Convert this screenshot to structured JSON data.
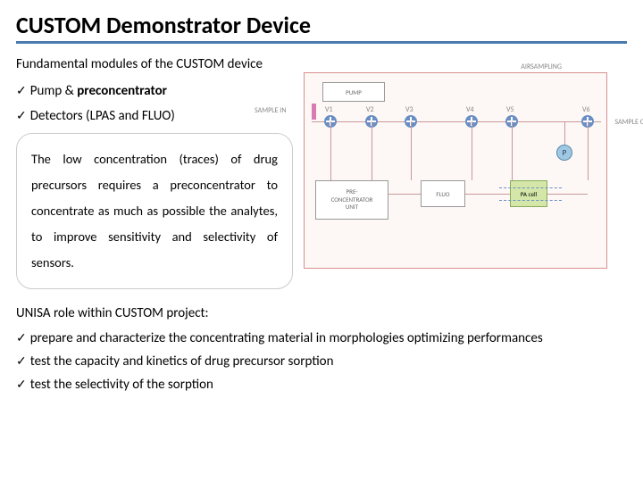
{
  "title": "CUSTOM Demonstrator Device",
  "subtitle": "Fundamental modules of the CUSTOM device",
  "modules": [
    {
      "label_html": "Pump & <b>preconcentrator</b>"
    },
    {
      "label_html": "Detectors (LPAS and FLUO)"
    }
  ],
  "description": "The low concentration (traces) of drug precursors requires a preconcentrator to concentrate as much as possible the analytes, to improve sensitivity and selectivity of sensors.",
  "role_title": "UNISA role within CUSTOM project:",
  "roles": [
    "prepare and characterize the concentrating material in morphologies optimizing performances",
    "test the capacity and kinetics of drug precursor sorption",
    "test the selectivity of the sorption"
  ],
  "diagram": {
    "border_color": "#d89090",
    "bg": "#fdf8f6",
    "labels": {
      "airsampling": "AIRSAMPLING",
      "pump_top": "PUMP",
      "sample_in": "SAMPLE IN",
      "sample_out": "SAMPLE OUT",
      "preconc": "PRE-\nCONCENTRATOR\nUNIT",
      "fluo": "FLUO",
      "pacell": "PA cell",
      "pump": "P",
      "valves": [
        "V1",
        "V2",
        "V3",
        "V4",
        "V5",
        "V6"
      ]
    },
    "valve_color": "#6a8fc4",
    "pump_color": "#9ec9e2",
    "pacell_color": "#d4e6a8",
    "line_color": "#c89898"
  }
}
